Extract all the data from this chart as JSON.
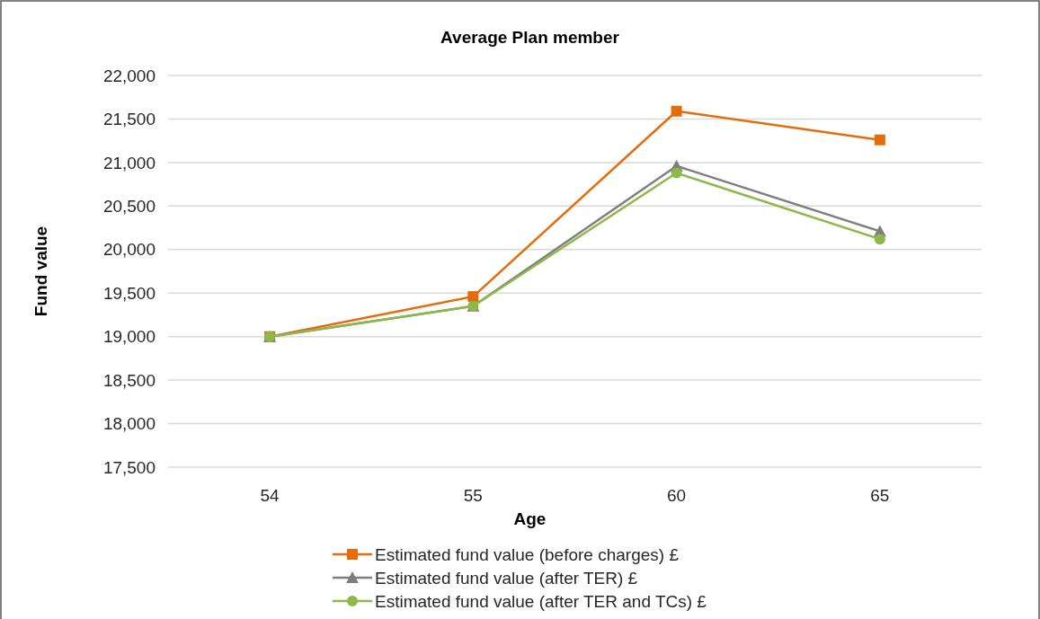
{
  "chart_data": {
    "type": "line",
    "title": "Average Plan member",
    "xlabel": "Age",
    "ylabel": "Fund value",
    "categories": [
      "54",
      "55",
      "60",
      "65"
    ],
    "series": [
      {
        "name": "Estimated fund value (before charges) £",
        "color": "#e46c0a",
        "marker": "square",
        "values": [
          19000,
          19460,
          21590,
          21260
        ]
      },
      {
        "name": "Estimated fund value (after TER) £",
        "color": "#7f7f7f",
        "marker": "triangle",
        "values": [
          19000,
          19350,
          20960,
          20210
        ]
      },
      {
        "name": "Estimated fund value (after TER and TCs) £",
        "color": "#8db94a",
        "marker": "circle",
        "values": [
          19000,
          19350,
          20880,
          20120
        ]
      }
    ],
    "ylim": [
      17500,
      22000
    ],
    "yticks": [
      {
        "value": 17500,
        "label": "17,500"
      },
      {
        "value": 18000,
        "label": "18,000"
      },
      {
        "value": 18500,
        "label": "18,500"
      },
      {
        "value": 19000,
        "label": "19,000"
      },
      {
        "value": 19500,
        "label": "19,500"
      },
      {
        "value": 20000,
        "label": "20,000"
      },
      {
        "value": 20500,
        "label": "20,500"
      },
      {
        "value": 21000,
        "label": "21,000"
      },
      {
        "value": 21500,
        "label": "21,500"
      },
      {
        "value": 22000,
        "label": "22,000"
      }
    ],
    "grid": "y",
    "legend": "bottom",
    "line_style": "solid"
  }
}
